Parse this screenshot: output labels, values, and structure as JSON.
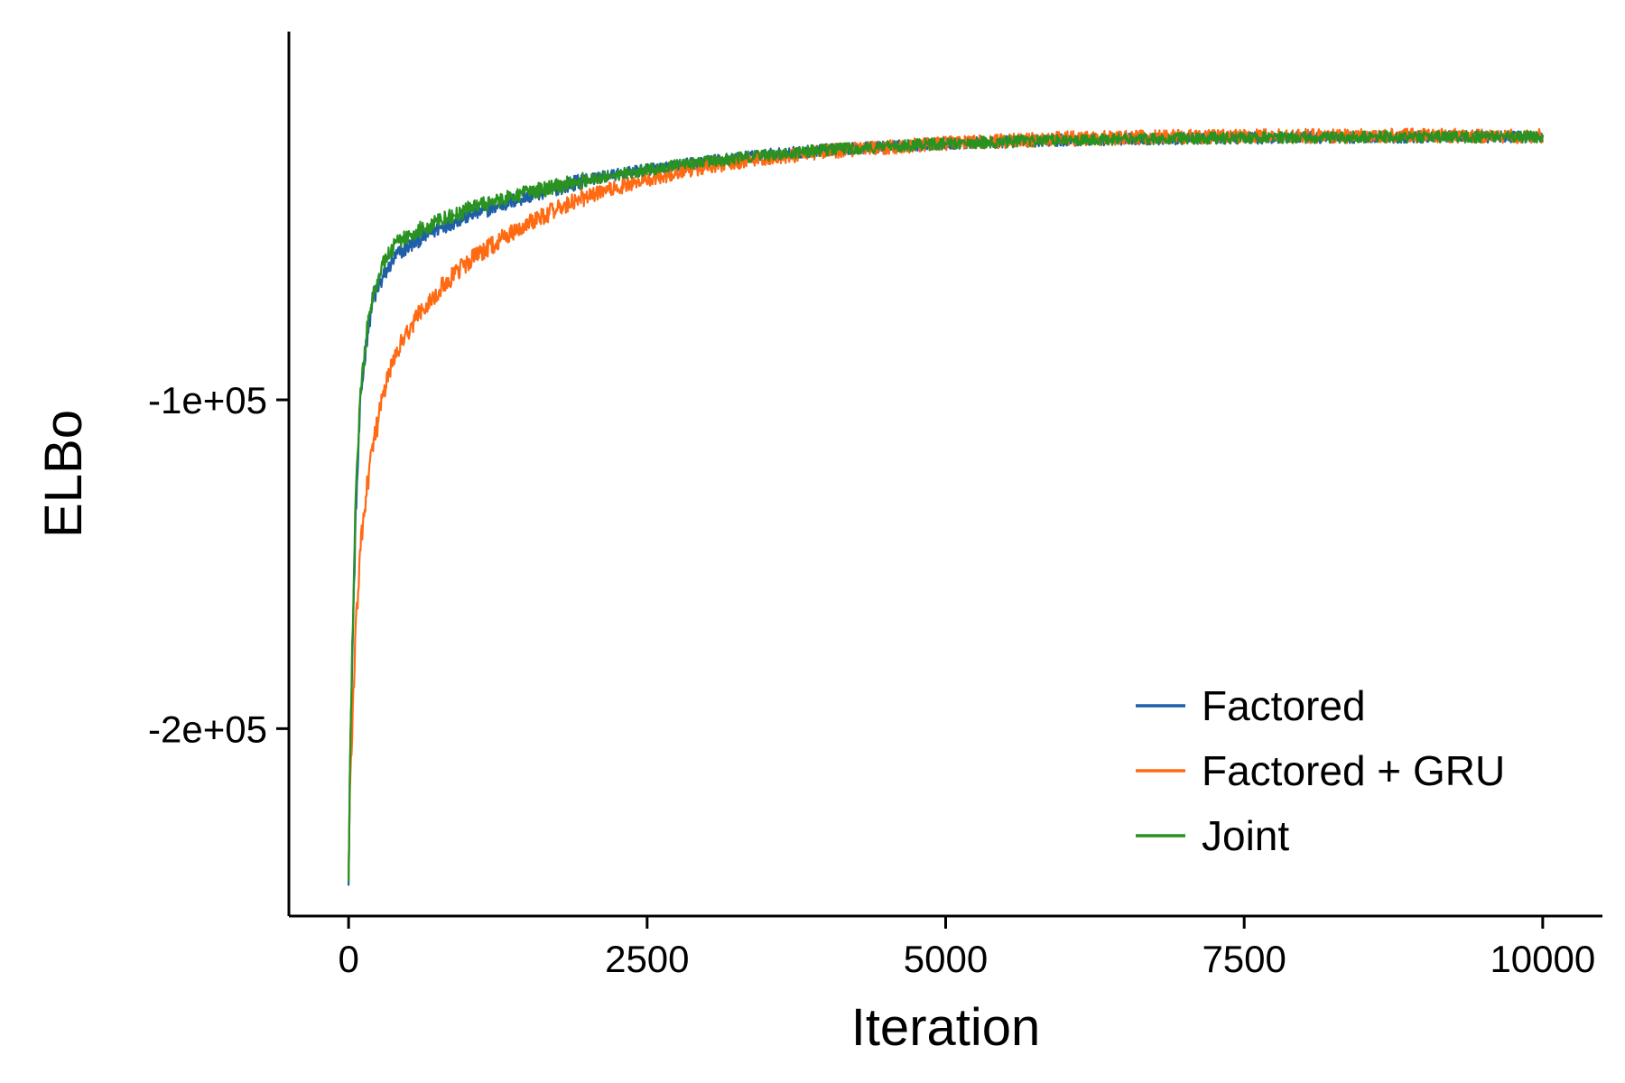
{
  "chart_data": {
    "type": "line",
    "xlabel": "Iteration",
    "ylabel": "ELBo",
    "xlim": [
      -500,
      10500
    ],
    "ylim": [
      -257000,
      12000
    ],
    "x_ticks": [
      0,
      2500,
      5000,
      7500,
      10000
    ],
    "x_tick_labels": [
      "0",
      "2500",
      "5000",
      "7500",
      "10000"
    ],
    "y_ticks": [
      -100000,
      -200000
    ],
    "y_tick_labels": [
      "-1e+05",
      "-2e+05"
    ],
    "grid": false,
    "legend_position": "bottom-right",
    "series": [
      {
        "name": "Factored",
        "color": "#1f5fa8",
        "noise": 1800,
        "x": [
          0,
          10,
          30,
          60,
          100,
          150,
          200,
          300,
          400,
          600,
          800,
          1000,
          1500,
          2000,
          2500,
          3000,
          3500,
          4000,
          5000,
          6000,
          7000,
          8000,
          9000,
          10000
        ],
        "y": [
          -245000,
          -215000,
          -180000,
          -135000,
          -100000,
          -82000,
          -70000,
          -62000,
          -56000,
          -51000,
          -47000,
          -44000,
          -38000,
          -33000,
          -30000,
          -27500,
          -25500,
          -24000,
          -22000,
          -21000,
          -20500,
          -20200,
          -20000,
          -20000
        ]
      },
      {
        "name": "Factored + GRU",
        "color": "#ff6a13",
        "noise": 2200,
        "x": [
          0,
          10,
          30,
          60,
          100,
          150,
          200,
          300,
          400,
          600,
          800,
          1000,
          1500,
          2000,
          2500,
          3000,
          3500,
          4000,
          5000,
          6000,
          7000,
          8000,
          9000,
          10000
        ],
        "y": [
          -245000,
          -220000,
          -200000,
          -170000,
          -145000,
          -128000,
          -115000,
          -97000,
          -85000,
          -73000,
          -65000,
          -58000,
          -46000,
          -38000,
          -33000,
          -29000,
          -26500,
          -24500,
          -22000,
          -20500,
          -20000,
          -19800,
          -19700,
          -19700
        ]
      },
      {
        "name": "Joint",
        "color": "#2a9221",
        "noise": 1800,
        "x": [
          0,
          10,
          30,
          60,
          100,
          150,
          200,
          300,
          400,
          600,
          800,
          1000,
          1500,
          2000,
          2500,
          3000,
          3500,
          4000,
          5000,
          6000,
          7000,
          8000,
          9000,
          10000
        ],
        "y": [
          -248000,
          -215000,
          -175000,
          -130000,
          -98000,
          -80000,
          -68000,
          -58000,
          -52000,
          -48000,
          -45000,
          -42000,
          -37000,
          -33000,
          -30000,
          -27500,
          -25500,
          -24000,
          -22000,
          -21000,
          -20500,
          -20200,
          -20000,
          -20000
        ]
      }
    ]
  }
}
